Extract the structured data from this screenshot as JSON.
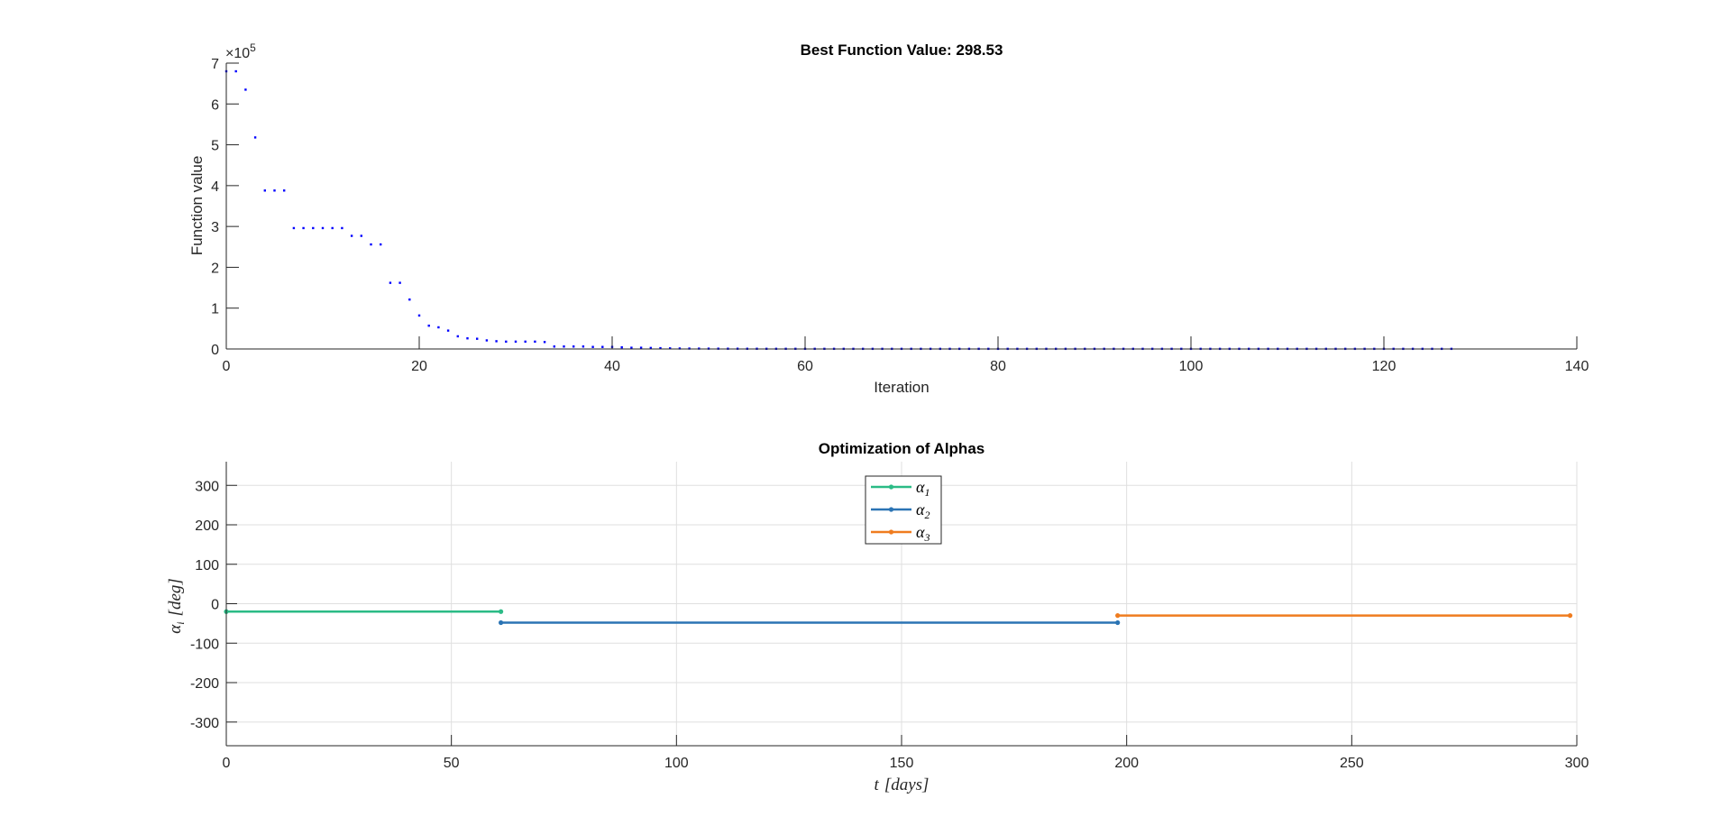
{
  "chart_data": [
    {
      "type": "scatter",
      "title": "Best Function Value: 298.53",
      "xlabel": "Iteration",
      "ylabel": "Function value",
      "y_exponent_label": "×10",
      "y_exponent_power": "5",
      "xlim": [
        0,
        140
      ],
      "ylim": [
        0,
        700000
      ],
      "xticks": [
        "0",
        "20",
        "40",
        "60",
        "80",
        "100",
        "120",
        "140"
      ],
      "yticks": [
        "0",
        "1",
        "2",
        "3",
        "4",
        "5",
        "6",
        "7"
      ],
      "xtick_values": [
        0,
        20,
        40,
        60,
        80,
        100,
        120,
        140
      ],
      "ytick_values": [
        0,
        100000,
        200000,
        300000,
        400000,
        500000,
        600000,
        700000
      ],
      "grid": false,
      "marker_color": "#0000ff",
      "x": [
        0,
        1,
        2,
        3,
        4,
        5,
        6,
        7,
        8,
        9,
        10,
        11,
        12,
        13,
        14,
        15,
        16,
        17,
        18,
        19,
        20,
        21,
        22,
        23,
        24,
        25,
        26,
        27,
        28,
        29,
        30,
        31,
        32,
        33,
        34,
        35,
        36,
        37,
        38,
        39,
        40,
        41,
        42,
        43,
        44,
        45,
        46,
        47,
        48,
        49,
        50,
        51,
        52,
        53,
        54,
        55,
        56,
        57,
        58,
        59,
        60,
        61,
        62,
        63,
        64,
        65,
        66,
        67,
        68,
        69,
        70,
        71,
        72,
        73,
        74,
        75,
        76,
        77,
        78,
        79,
        80,
        81,
        82,
        83,
        84,
        85,
        86,
        87,
        88,
        89,
        90,
        91,
        92,
        93,
        94,
        95,
        96,
        97,
        98,
        99,
        100,
        101,
        102,
        103,
        104,
        105,
        106,
        107,
        108,
        109,
        110,
        111,
        112,
        113,
        114,
        115,
        116,
        117,
        118,
        119,
        120,
        121,
        122,
        123,
        124,
        125,
        126,
        127
      ],
      "y": [
        680000,
        680000,
        635000,
        518000,
        388000,
        388000,
        388000,
        296000,
        296000,
        296000,
        296000,
        296000,
        296000,
        277000,
        277000,
        256000,
        256000,
        162000,
        162000,
        121000,
        82000,
        57000,
        53000,
        45000,
        31000,
        26000,
        25000,
        21000,
        19000,
        18000,
        18000,
        18000,
        18000,
        17000,
        6000,
        6000,
        6000,
        6000,
        5000,
        5000,
        5000,
        4000,
        3000,
        3000,
        2500,
        2000,
        1500,
        1200,
        1000,
        900,
        800,
        700,
        600,
        600,
        500,
        500,
        400,
        400,
        400,
        400,
        350,
        350,
        350,
        350,
        300,
        300,
        300,
        300,
        300,
        300,
        300,
        300,
        300,
        300,
        300,
        300,
        300,
        300,
        300,
        300,
        300,
        300,
        300,
        300,
        300,
        300,
        300,
        300,
        300,
        300,
        300,
        300,
        300,
        300,
        300,
        300,
        300,
        300,
        300,
        300,
        300,
        300,
        300,
        300,
        300,
        300,
        300,
        300,
        300,
        300,
        300,
        300,
        300,
        300,
        300,
        300,
        300,
        300,
        300,
        300,
        300,
        300,
        300,
        300,
        300,
        300,
        299,
        298.53
      ]
    },
    {
      "type": "line",
      "title": "Optimization of Alphas",
      "xlabel": "t",
      "xlabel_unit": "[days]",
      "ylabel": "α",
      "ylabel_sub": "i",
      "ylabel_unit": "[deg]",
      "xlim": [
        0,
        300
      ],
      "ylim": [
        -360,
        360
      ],
      "xticks": [
        "0",
        "50",
        "100",
        "150",
        "200",
        "250",
        "300"
      ],
      "yticks": [
        "-300",
        "-200",
        "-100",
        "0",
        "100",
        "200",
        "300"
      ],
      "xtick_values": [
        0,
        50,
        100,
        150,
        200,
        250,
        300
      ],
      "ytick_values": [
        -300,
        -200,
        -100,
        0,
        100,
        200,
        300
      ],
      "grid": true,
      "legend_position": "top-center",
      "series": [
        {
          "name": "α",
          "sub": "1",
          "color": "#2bbb86",
          "x": [
            0,
            61
          ],
          "y": [
            -20,
            -20
          ]
        },
        {
          "name": "α",
          "sub": "2",
          "color": "#2b74b4",
          "x": [
            61,
            198
          ],
          "y": [
            -48,
            -48
          ]
        },
        {
          "name": "α",
          "sub": "3",
          "color": "#ef7c1f",
          "x": [
            198,
            298.5
          ],
          "y": [
            -30,
            -30
          ]
        }
      ]
    }
  ]
}
